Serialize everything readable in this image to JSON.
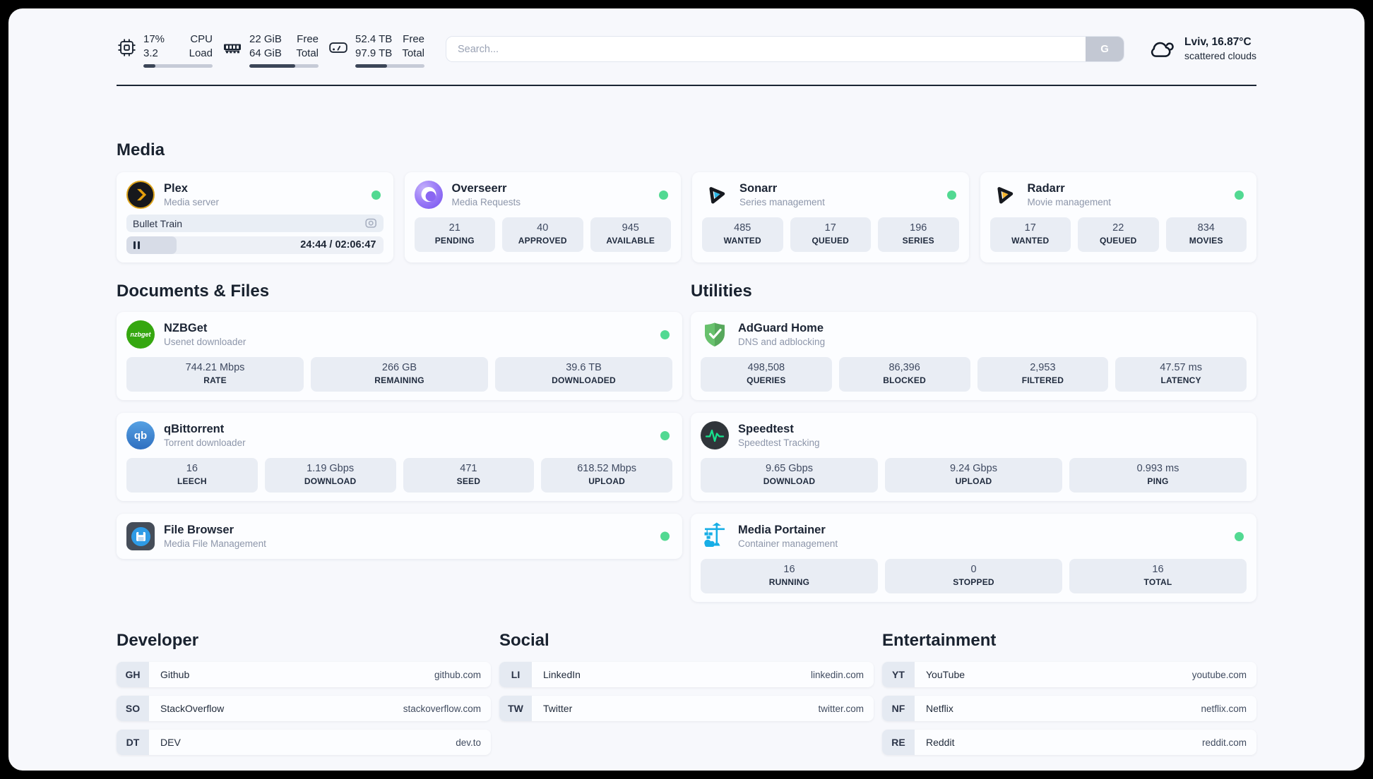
{
  "colors": {
    "status_online": "#52d992",
    "plex_amber": "#e5a00d",
    "sonarr_cyan": "#2cb8e8",
    "radarr_amber": "#f6b42a",
    "nzbget_green": "#35a710",
    "qbittorrent_blue": "#2f6fc0",
    "adguard_green": "#68c16d",
    "speedtest_pulse": "#16e28e",
    "portainer_blue": "#17aee6"
  },
  "header": {
    "system_stats": [
      {
        "icon": "cpu-icon",
        "values": [
          "17%",
          "3.2"
        ],
        "labels": [
          "CPU",
          "Load"
        ],
        "progress": 17
      },
      {
        "icon": "ram-icon",
        "values": [
          "22 GiB",
          "64 GiB"
        ],
        "labels": [
          "Free",
          "Total"
        ],
        "progress": 66
      },
      {
        "icon": "disk-icon",
        "values": [
          "52.4 TB",
          "97.9 TB"
        ],
        "labels": [
          "Free",
          "Total"
        ],
        "progress": 46
      }
    ],
    "search": {
      "placeholder": "Search...",
      "button_label": "G"
    },
    "weather": {
      "location": "Lviv, 16.87°C",
      "condition": "scattered clouds"
    }
  },
  "media": {
    "section_title": "Media",
    "plex": {
      "title": "Plex",
      "subtitle": "Media server",
      "status": "online",
      "now_playing": "Bullet Train",
      "time_display": "24:44 / 02:06:47",
      "progress": 19.5
    },
    "cards": [
      {
        "title": "Overseerr",
        "subtitle": "Media Requests",
        "status": "online",
        "stats": [
          {
            "value": "21",
            "label": "PENDING"
          },
          {
            "value": "40",
            "label": "APPROVED"
          },
          {
            "value": "945",
            "label": "AVAILABLE"
          }
        ]
      },
      {
        "title": "Sonarr",
        "subtitle": "Series management",
        "status": "online",
        "stats": [
          {
            "value": "485",
            "label": "WANTED"
          },
          {
            "value": "17",
            "label": "QUEUED"
          },
          {
            "value": "196",
            "label": "SERIES"
          }
        ]
      },
      {
        "title": "Radarr",
        "subtitle": "Movie management",
        "status": "online",
        "stats": [
          {
            "value": "17",
            "label": "WANTED"
          },
          {
            "value": "22",
            "label": "QUEUED"
          },
          {
            "value": "834",
            "label": "MOVIES"
          }
        ]
      }
    ]
  },
  "documents": {
    "section_title": "Documents & Files",
    "cards": [
      {
        "title": "NZBGet",
        "subtitle": "Usenet downloader",
        "status": "online",
        "icon_text": "nzbget",
        "stats": [
          {
            "value": "744.21 Mbps",
            "label": "RATE"
          },
          {
            "value": "266 GB",
            "label": "REMAINING"
          },
          {
            "value": "39.6 TB",
            "label": "DOWNLOADED"
          }
        ]
      },
      {
        "title": "qBittorrent",
        "subtitle": "Torrent downloader",
        "status": "online",
        "icon_text": "qb",
        "stats": [
          {
            "value": "16",
            "label": "LEECH"
          },
          {
            "value": "1.19 Gbps",
            "label": "DOWNLOAD"
          },
          {
            "value": "471",
            "label": "SEED"
          },
          {
            "value": "618.52 Mbps",
            "label": "UPLOAD"
          }
        ]
      },
      {
        "title": "File Browser",
        "subtitle": "Media File Management",
        "status": "online",
        "stats": []
      }
    ]
  },
  "utilities": {
    "section_title": "Utilities",
    "cards": [
      {
        "title": "AdGuard Home",
        "subtitle": "DNS and adblocking",
        "stats": [
          {
            "value": "498,508",
            "label": "QUERIES"
          },
          {
            "value": "86,396",
            "label": "BLOCKED"
          },
          {
            "value": "2,953",
            "label": "FILTERED"
          },
          {
            "value": "47.57 ms",
            "label": "LATENCY"
          }
        ]
      },
      {
        "title": "Speedtest",
        "subtitle": "Speedtest Tracking",
        "stats": [
          {
            "value": "9.65 Gbps",
            "label": "DOWNLOAD"
          },
          {
            "value": "9.24 Gbps",
            "label": "UPLOAD"
          },
          {
            "value": "0.993 ms",
            "label": "PING"
          }
        ]
      },
      {
        "title": "Media Portainer",
        "subtitle": "Container management",
        "status": "online",
        "stats": [
          {
            "value": "16",
            "label": "RUNNING"
          },
          {
            "value": "0",
            "label": "STOPPED"
          },
          {
            "value": "16",
            "label": "TOTAL"
          }
        ]
      }
    ]
  },
  "links": {
    "developer": {
      "title": "Developer",
      "items": [
        {
          "tag": "GH",
          "name": "Github",
          "url": "github.com"
        },
        {
          "tag": "SO",
          "name": "StackOverflow",
          "url": "stackoverflow.com"
        },
        {
          "tag": "DT",
          "name": "DEV",
          "url": "dev.to"
        }
      ]
    },
    "social": {
      "title": "Social",
      "items": [
        {
          "tag": "LI",
          "name": "LinkedIn",
          "url": "linkedin.com"
        },
        {
          "tag": "TW",
          "name": "Twitter",
          "url": "twitter.com"
        }
      ]
    },
    "entertainment": {
      "title": "Entertainment",
      "items": [
        {
          "tag": "YT",
          "name": "YouTube",
          "url": "youtube.com"
        },
        {
          "tag": "NF",
          "name": "Netflix",
          "url": "netflix.com"
        },
        {
          "tag": "RE",
          "name": "Reddit",
          "url": "reddit.com"
        }
      ]
    }
  }
}
